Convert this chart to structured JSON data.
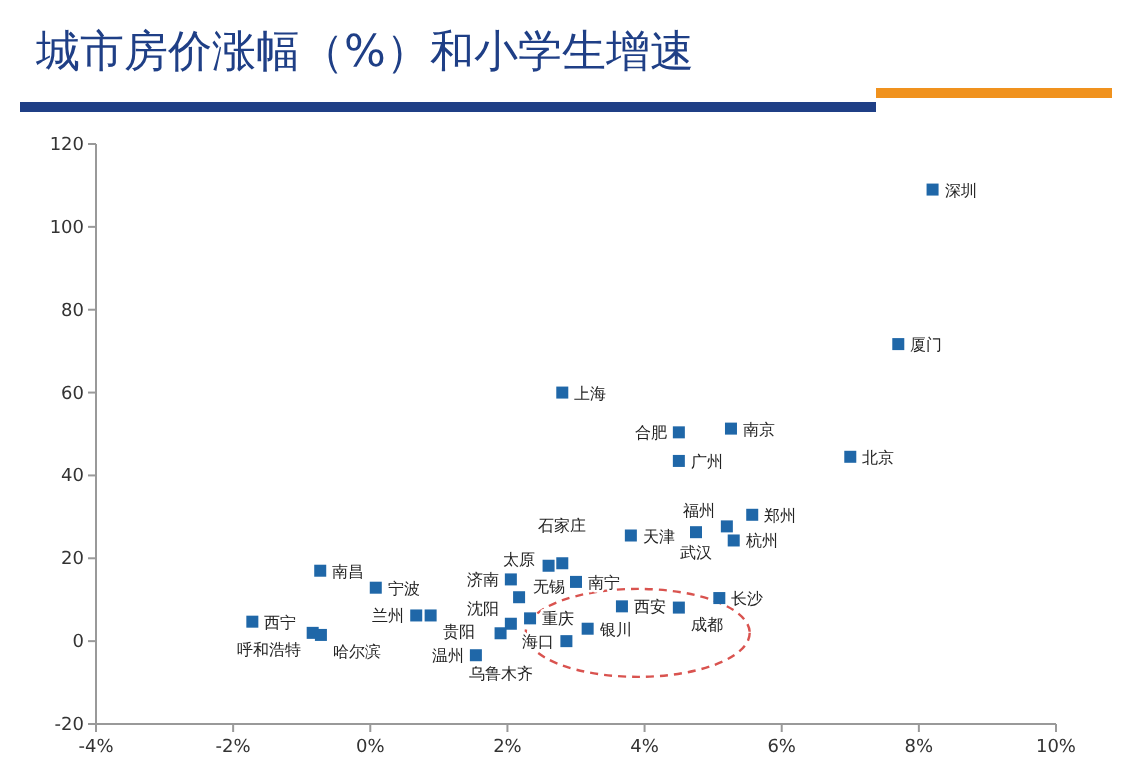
{
  "chart_data": {
    "type": "scatter",
    "title": "城市房价涨幅（%）和小学生增速",
    "xlim": [
      -4,
      10
    ],
    "xticks": [
      {
        "value": -4,
        "label": "-4%"
      },
      {
        "value": -2,
        "label": "-2%"
      },
      {
        "value": 0,
        "label": "0%"
      },
      {
        "value": 2,
        "label": "2%"
      },
      {
        "value": 4,
        "label": "4%"
      },
      {
        "value": 6,
        "label": "6%"
      },
      {
        "value": 8,
        "label": "8%"
      },
      {
        "value": 10,
        "label": "10%"
      }
    ],
    "ylim": [
      -20,
      120
    ],
    "yticks": [
      -20,
      0,
      20,
      40,
      60,
      80,
      100,
      120
    ],
    "grid": false,
    "marker": "square",
    "series": [
      {
        "color": "#1f67a8",
        "x": [
          8.2,
          7.7,
          7.0,
          2.8,
          4.5,
          4.5,
          5.26,
          3.8,
          4.75,
          5.2,
          5.57,
          5.3,
          2.6,
          2.8,
          3.0,
          2.05,
          2.17,
          2.33,
          2.05,
          1.9,
          1.54,
          2.86,
          3.17,
          3.67,
          4.5,
          5.09,
          0.88,
          0.67,
          -0.73,
          0.08,
          -1.72,
          -0.84,
          -0.72
        ],
        "values": [
          109,
          71.7,
          44.5,
          60,
          50.4,
          43.5,
          51.3,
          25.5,
          26.3,
          27.7,
          30.5,
          24.3,
          18.2,
          18.8,
          14.3,
          14.9,
          10.6,
          5.5,
          4.2,
          1.9,
          -3.4,
          0,
          3,
          8.4,
          8.1,
          10.4,
          6.2,
          6.2,
          17,
          12.9,
          4.7,
          2,
          1.5
        ]
      }
    ],
    "annotations": [
      {
        "text": "深圳",
        "x": 8.2,
        "y": 109
      },
      {
        "text": "厦门",
        "x": 7.7,
        "y": 71.7
      },
      {
        "text": "北京",
        "x": 7.0,
        "y": 44.5
      },
      {
        "text": "上海",
        "x": 2.8,
        "y": 60
      },
      {
        "text": "合肥",
        "x": 4.5,
        "y": 50.4
      },
      {
        "text": "广州",
        "x": 4.5,
        "y": 43.5
      },
      {
        "text": "南京",
        "x": 5.26,
        "y": 51.3
      },
      {
        "text": "天津",
        "x": 3.8,
        "y": 25.5
      },
      {
        "text": "武汉",
        "x": 4.75,
        "y": 26.3
      },
      {
        "text": "福州",
        "x": 5.2,
        "y": 27.7
      },
      {
        "text": "郑州",
        "x": 5.57,
        "y": 30.5
      },
      {
        "text": "杭州",
        "x": 5.3,
        "y": 24.3
      },
      {
        "text": "无锡",
        "x": 2.6,
        "y": 18.2
      },
      {
        "text": "石家庄",
        "x": 2.8,
        "y": 18.8
      },
      {
        "text": "南宁",
        "x": 3.0,
        "y": 14.3
      },
      {
        "text": "济南",
        "x": 2.05,
        "y": 14.9
      },
      {
        "text": "太原",
        "x": 2.17,
        "y": 10.6
      },
      {
        "text": "重庆",
        "x": 2.33,
        "y": 5.5
      },
      {
        "text": "沈阳",
        "x": 2.05,
        "y": 4.2
      },
      {
        "text": "乌鲁木齐",
        "x": 1.9,
        "y": 1.9
      },
      {
        "text": "温州",
        "x": 1.54,
        "y": -3.4
      },
      {
        "text": "海口",
        "x": 2.86,
        "y": 0
      },
      {
        "text": "银川",
        "x": 3.17,
        "y": 3
      },
      {
        "text": "西安",
        "x": 3.67,
        "y": 8.4
      },
      {
        "text": "成都",
        "x": 4.5,
        "y": 8.1
      },
      {
        "text": "长沙",
        "x": 5.09,
        "y": 10.4
      },
      {
        "text": "贵阳",
        "x": 0.88,
        "y": 6.2
      },
      {
        "text": "兰州",
        "x": 0.67,
        "y": 6.2
      },
      {
        "text": "南昌",
        "x": -0.73,
        "y": 17
      },
      {
        "text": "宁波",
        "x": 0.08,
        "y": 12.9
      },
      {
        "text": "西宁",
        "x": -1.72,
        "y": 4.7
      },
      {
        "text": "呼和浩特",
        "x": -0.84,
        "y": 2
      },
      {
        "text": "哈尔滨",
        "x": -0.72,
        "y": 1.5
      }
    ]
  }
}
